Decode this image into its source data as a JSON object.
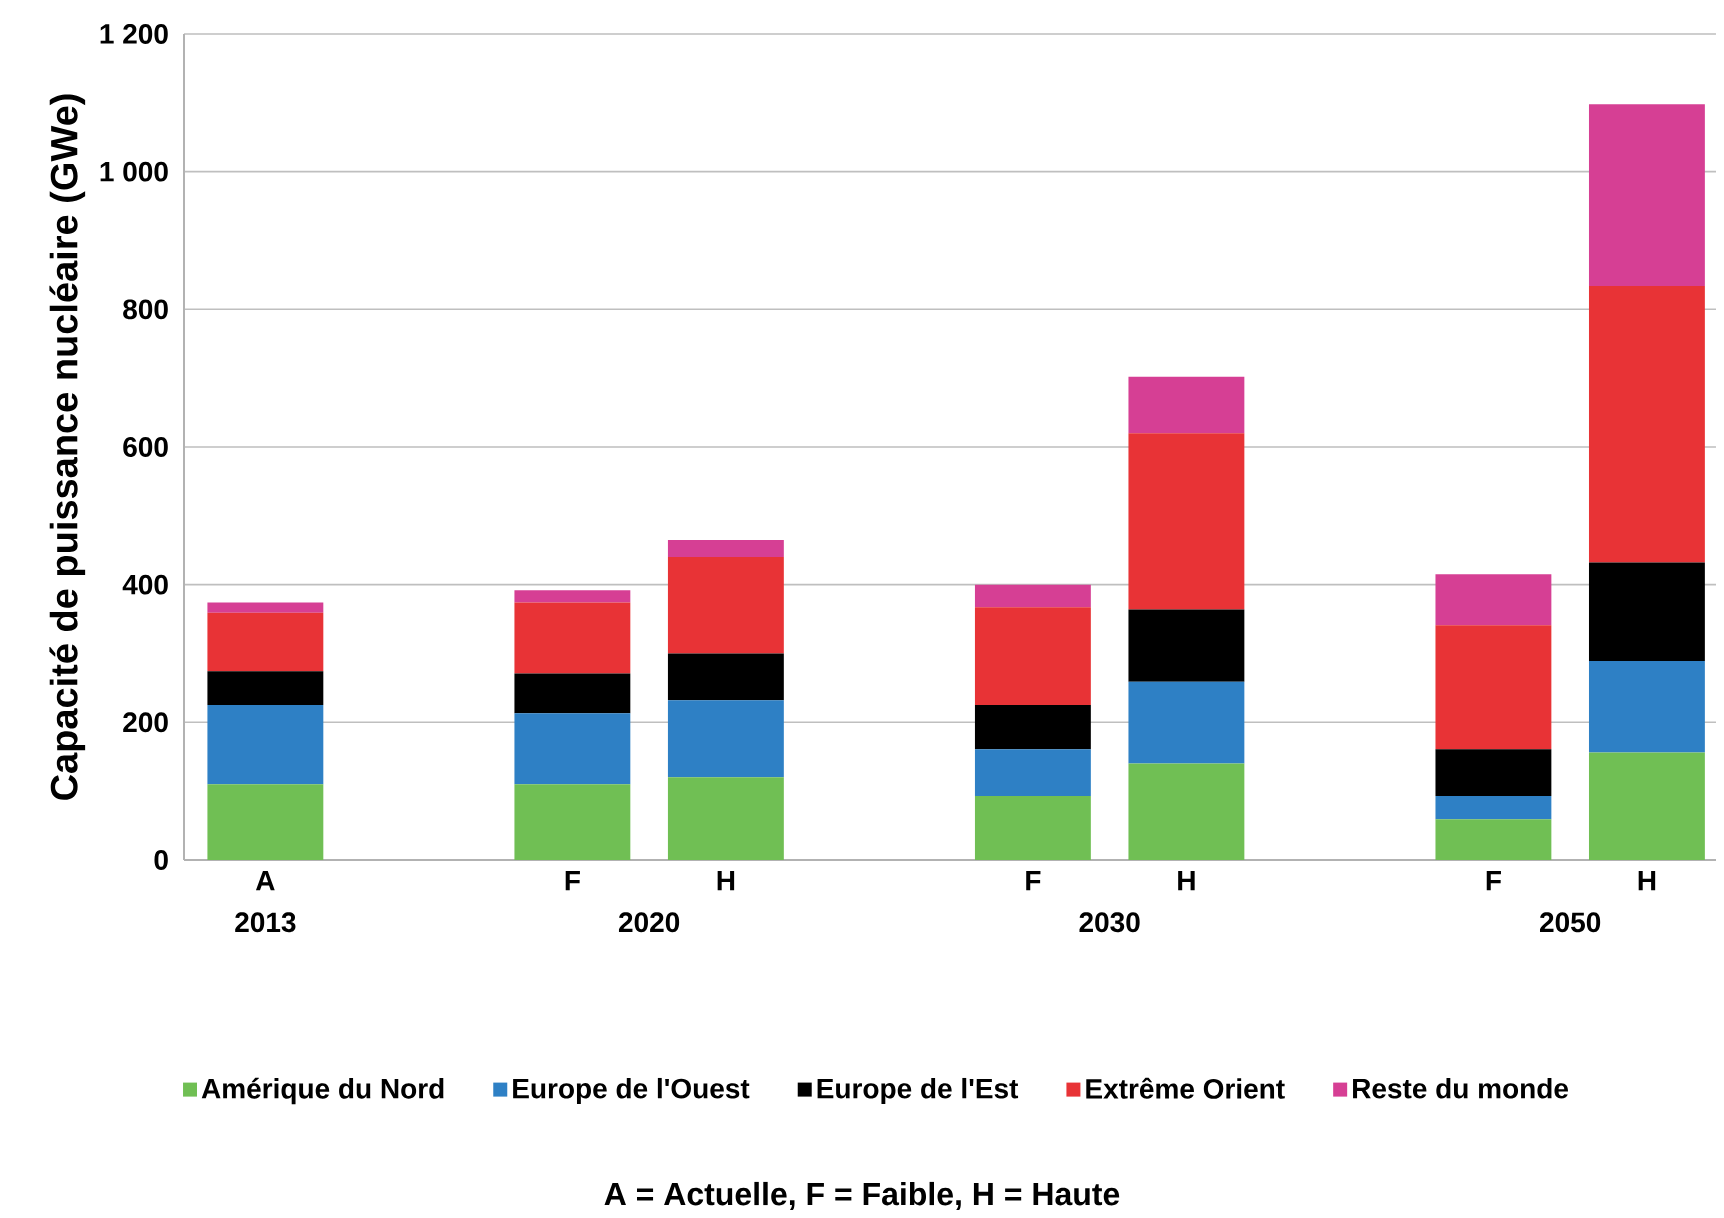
{
  "chart_data": {
    "type": "bar",
    "stacked": true,
    "ylabel": "Capacité de puissance nucléaire (GWe)",
    "categories": [
      "A",
      null,
      "F",
      "H",
      null,
      "F",
      "H",
      null,
      "F",
      "H"
    ],
    "series": [
      {
        "name": "Amérique du Nord",
        "color": "#70bf54",
        "values": [
          110,
          null,
          110,
          120,
          null,
          93,
          140,
          null,
          59,
          156
        ]
      },
      {
        "name": "Europe de l'Ouest",
        "color": "#2e80c5",
        "values": [
          115,
          null,
          103,
          112,
          null,
          68,
          119,
          null,
          34,
          133
        ]
      },
      {
        "name": "Europe de l'Est",
        "color": "#000000",
        "values": [
          49,
          null,
          58,
          68,
          null,
          64,
          105,
          null,
          68,
          143
        ]
      },
      {
        "name": "Extrême Orient",
        "color": "#e83336",
        "values": [
          85,
          null,
          103,
          140,
          null,
          142,
          256,
          null,
          180,
          402
        ]
      },
      {
        "name": "Reste du monde",
        "color": "#d63f94",
        "values": [
          15,
          null,
          18,
          25,
          null,
          33,
          82,
          null,
          74,
          264
        ]
      }
    ],
    "ylim": [
      0,
      1200
    ],
    "yticks": [
      0,
      200,
      400,
      600,
      800,
      {
        "value": 1000,
        "label": "1 000"
      },
      {
        "value": 1200,
        "label": "1 200"
      }
    ],
    "grid": "y",
    "legend": "bottom",
    "annotations": [
      "2013",
      "2020",
      "2030",
      "2050",
      "A = Actuelle, F = Faible, H = Haute"
    ]
  }
}
